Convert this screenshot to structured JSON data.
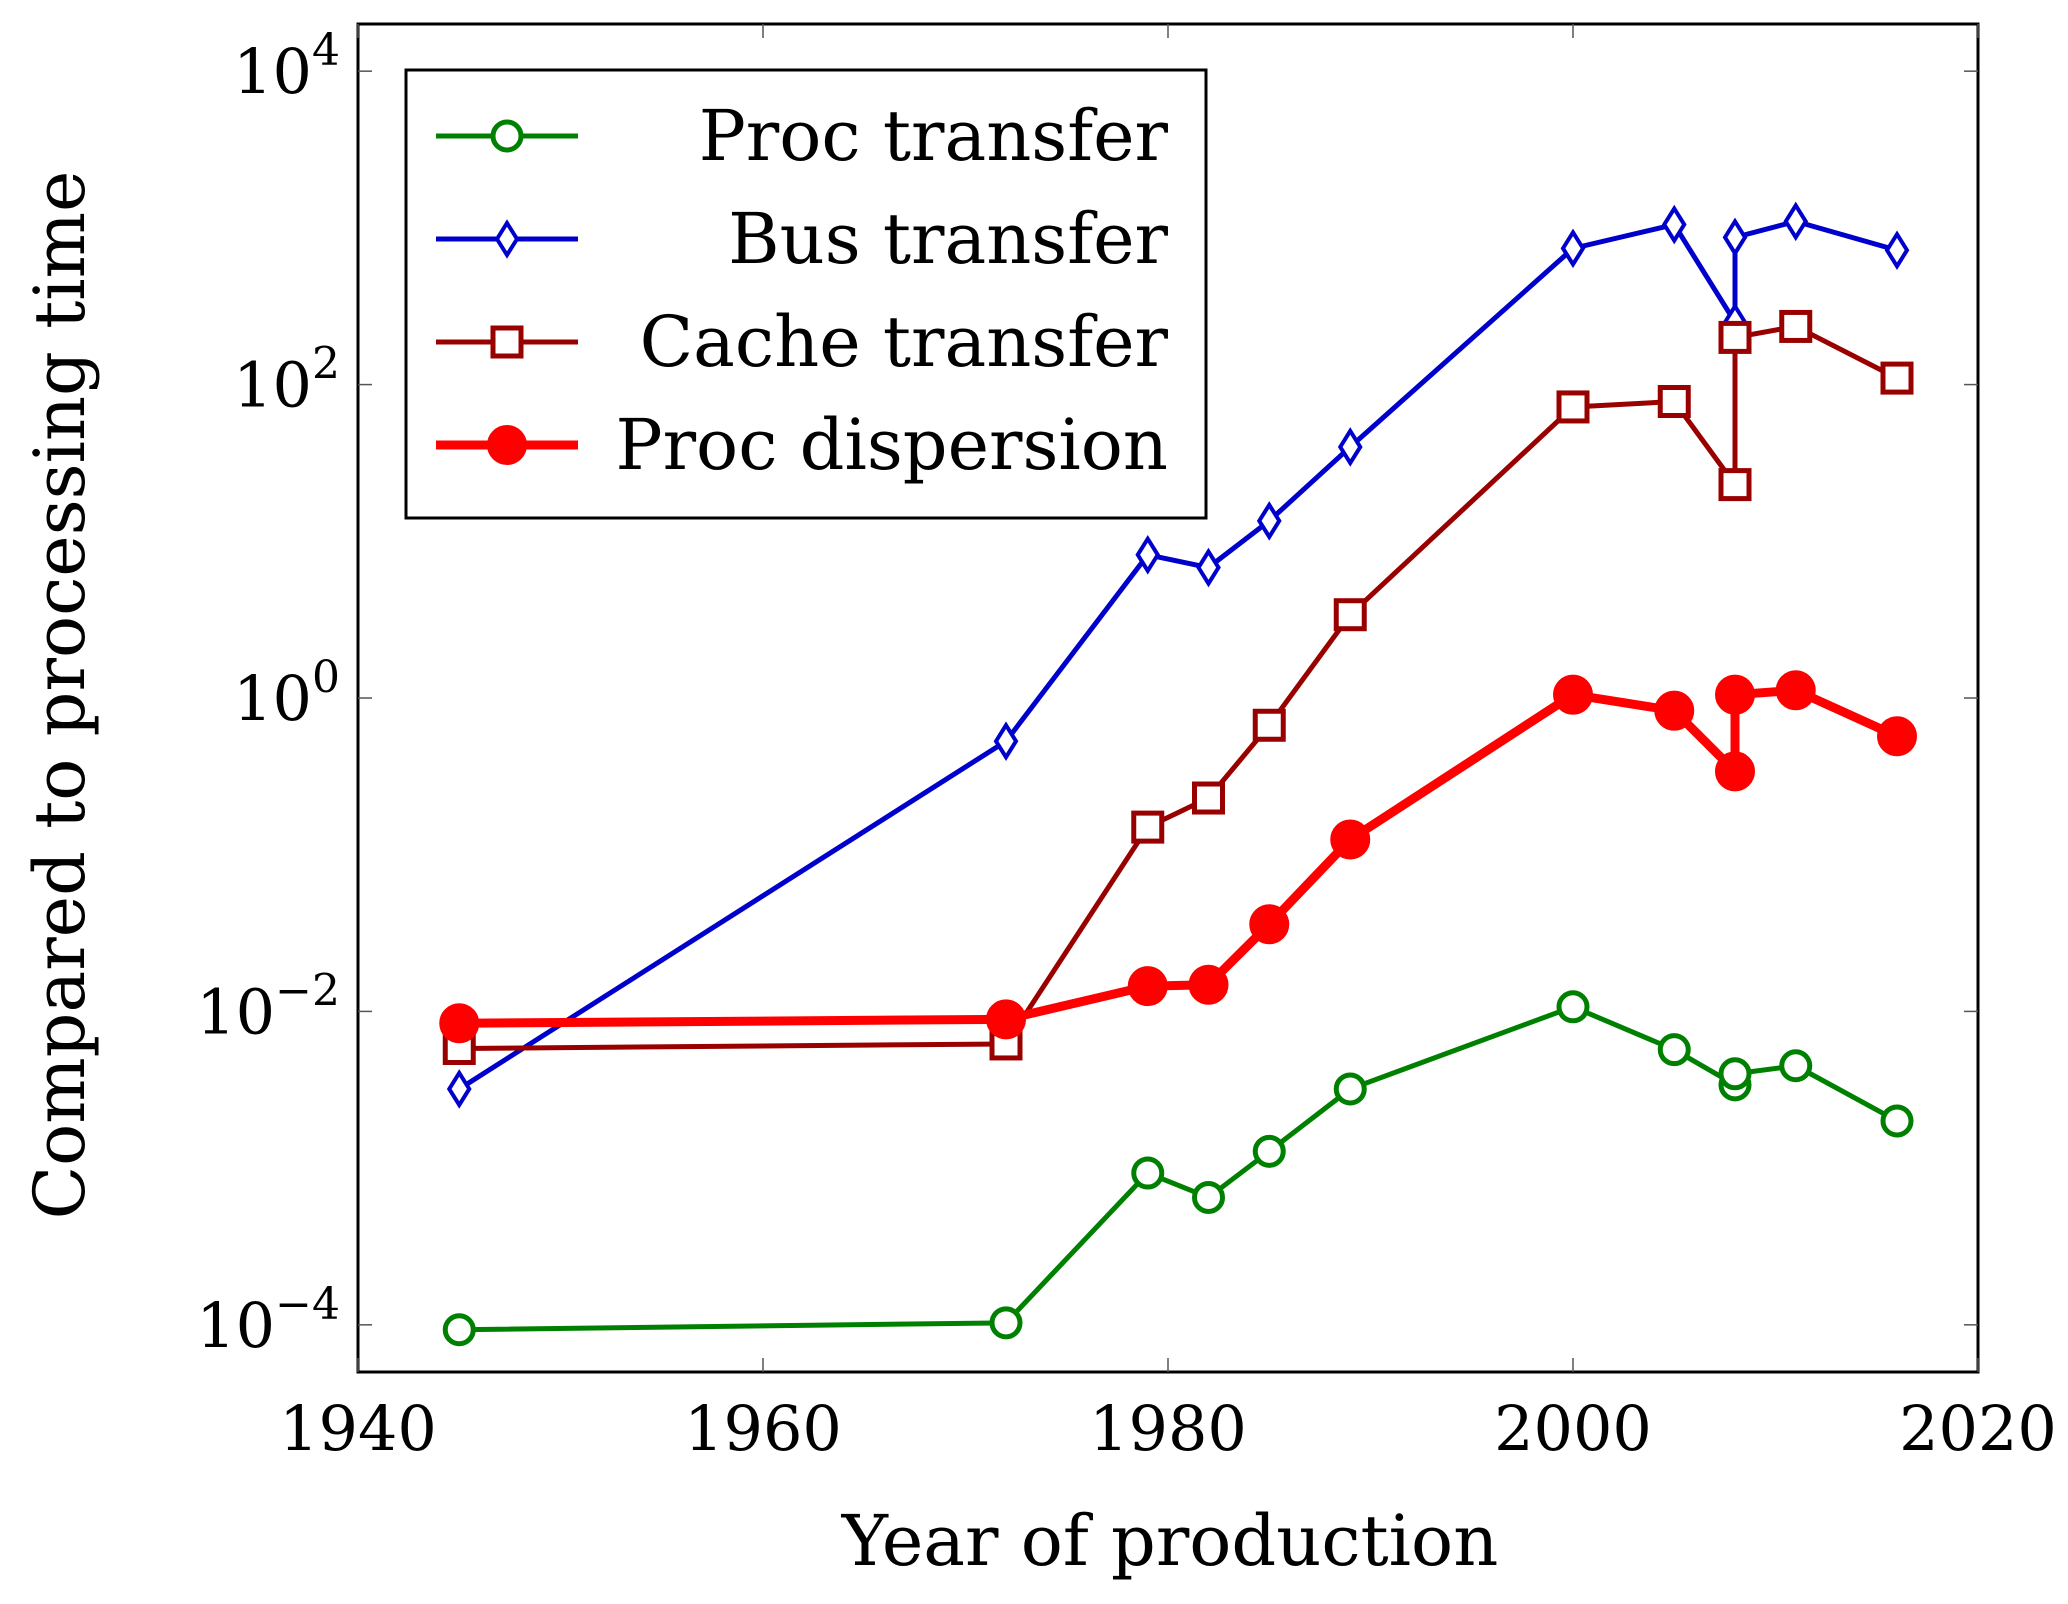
{
  "chart_data": {
    "type": "line",
    "xlabel": "Year of production",
    "ylabel": "Compared to processing time",
    "xlim": [
      1940,
      2020
    ],
    "ylim": [
      5e-05,
      20000
    ],
    "yscale": "log",
    "x_ticks": [
      1940,
      1960,
      1980,
      2000,
      2020
    ],
    "x_tick_labels": [
      "1940",
      "1960",
      "1980",
      "2000",
      "2020"
    ],
    "y_ticks": [
      0.0001,
      0.01,
      1,
      100,
      10000
    ],
    "y_tick_labels": [
      {
        "base": "10",
        "exp": "−4"
      },
      {
        "base": "10",
        "exp": "−2"
      },
      {
        "base": "10",
        "exp": "0"
      },
      {
        "base": "10",
        "exp": "2"
      },
      {
        "base": "10",
        "exp": "4"
      }
    ],
    "grid": false,
    "legend_position": "top-left",
    "series": [
      {
        "name": "Proc transfer",
        "color": "#008000",
        "marker": "circle-open",
        "x": [
          1945,
          1972,
          1979,
          1982,
          1985,
          1989,
          2000,
          2005,
          2008,
          2008,
          2011,
          2016
        ],
        "y": [
          9.3e-05,
          0.000103,
          0.00093,
          0.00065,
          0.00128,
          0.0032,
          0.0107,
          0.0057,
          0.0034,
          0.004,
          0.0045,
          0.002
        ]
      },
      {
        "name": "Bus transfer",
        "color": "#0000cc",
        "marker": "diamond-open",
        "x": [
          1945,
          1972,
          1979,
          1982,
          1985,
          1989,
          2000,
          2005,
          2008,
          2008,
          2011,
          2016
        ],
        "y": [
          0.0032,
          0.53,
          8.2,
          6.8,
          13.5,
          40,
          740,
          1050,
          250,
          870,
          1100,
          720
        ]
      },
      {
        "name": "Cache transfer",
        "color": "#990000",
        "marker": "square-open",
        "x": [
          1945,
          1972,
          1979,
          1982,
          1985,
          1989,
          2000,
          2005,
          2008,
          2008,
          2011,
          2016
        ],
        "y": [
          0.0058,
          0.0062,
          0.15,
          0.23,
          0.67,
          3.4,
          72,
          78,
          23,
          200,
          235,
          110
        ]
      },
      {
        "name": "Proc dispersion",
        "color": "#ff0000",
        "marker": "circle-filled",
        "x": [
          1945,
          1972,
          1979,
          1982,
          1985,
          1989,
          2000,
          2005,
          2008,
          2008,
          2011,
          2016
        ],
        "y": [
          0.0084,
          0.0089,
          0.0145,
          0.0148,
          0.036,
          0.125,
          1.05,
          0.83,
          0.34,
          1.05,
          1.12,
          0.57
        ]
      }
    ]
  }
}
